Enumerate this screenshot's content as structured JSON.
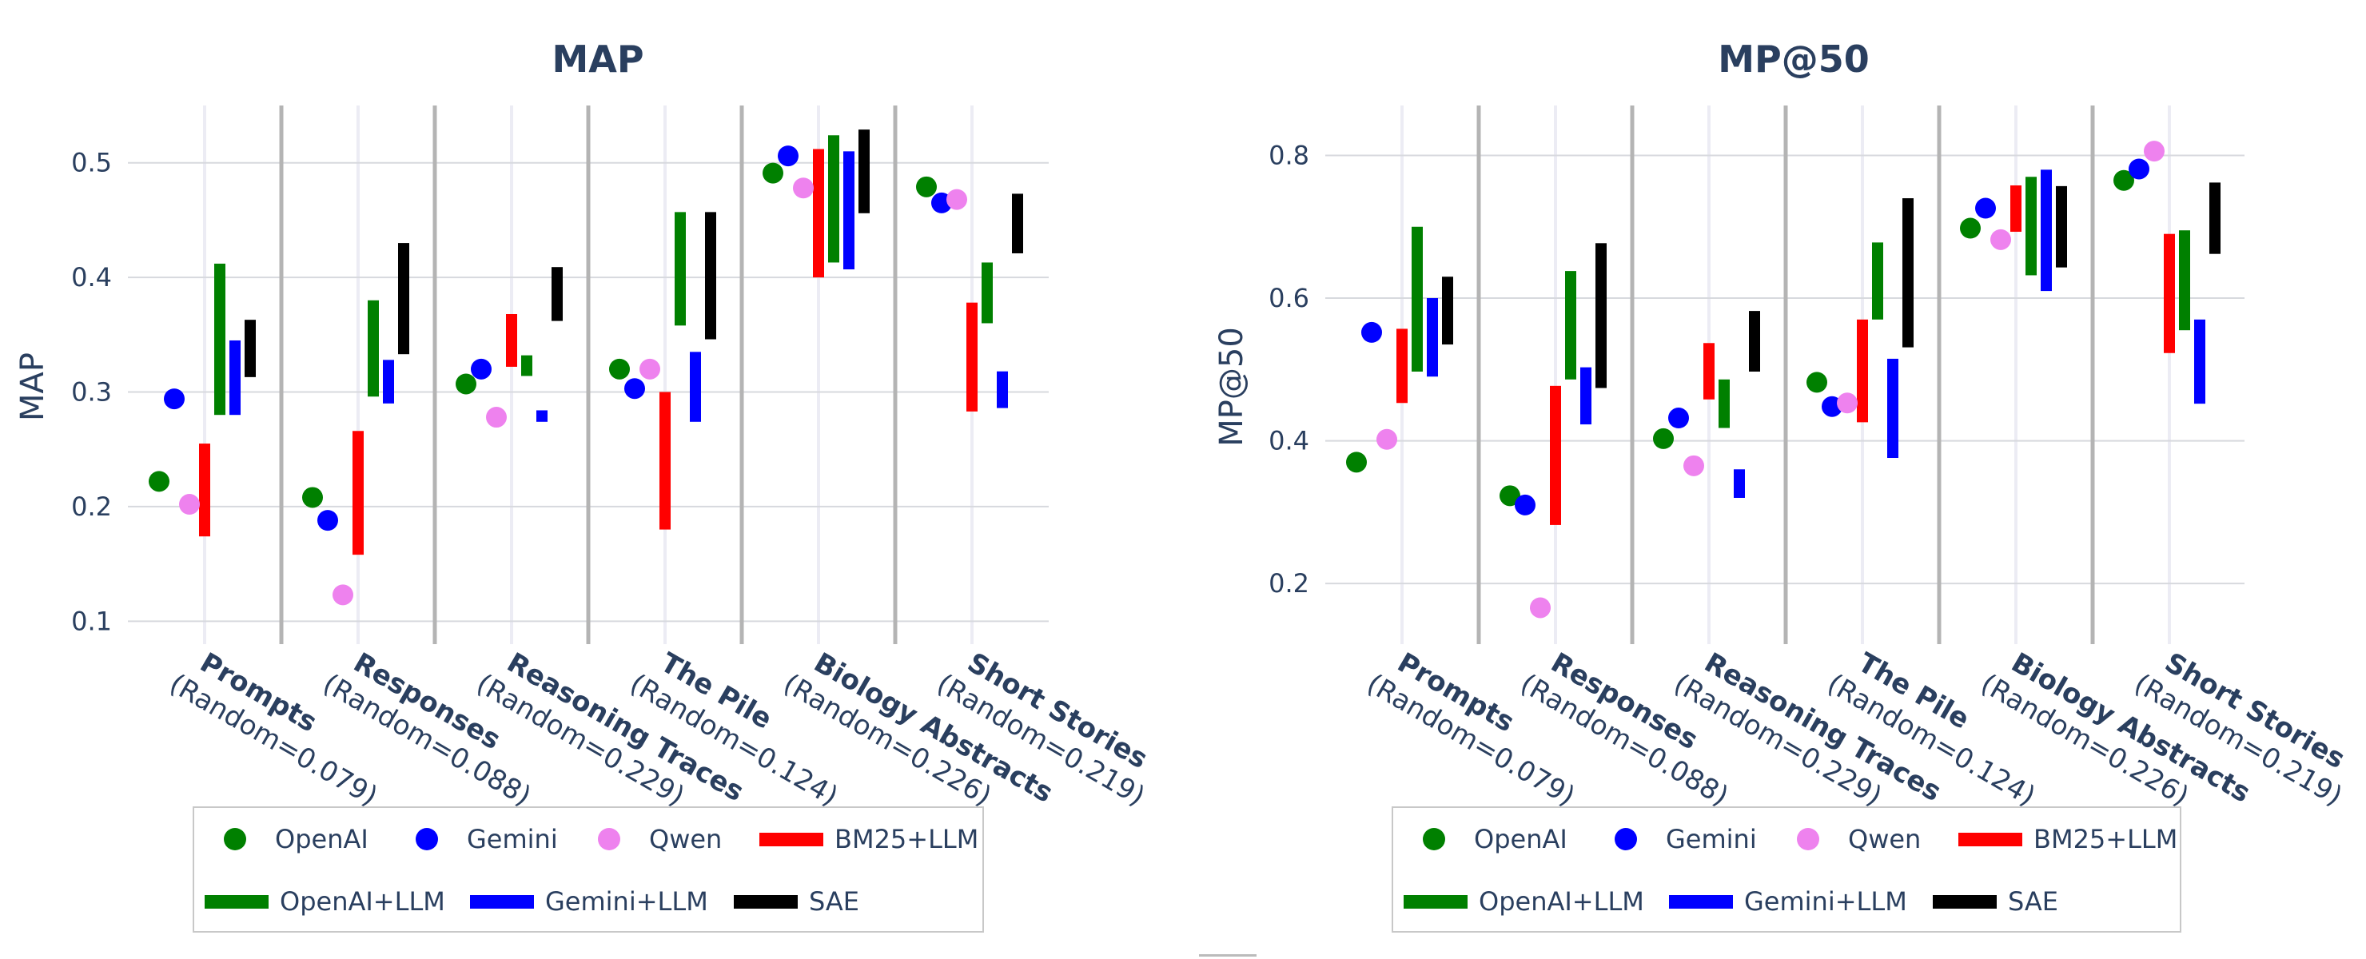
{
  "chart_data": [
    {
      "type": "range-dot",
      "title": "MAP",
      "ylabel": "MAP",
      "ylim": [
        0.08,
        0.55
      ],
      "yticks": [
        "0.1",
        "0.2",
        "0.3",
        "0.4",
        "0.5"
      ],
      "categories": [
        {
          "name": "Prompts",
          "random": "(Random=0.079)"
        },
        {
          "name": "Responses",
          "random": "(Random=0.088)"
        },
        {
          "name": "Reasoning Traces",
          "random": "(Random=0.229)"
        },
        {
          "name": "The Pile",
          "random": "(Random=0.124)"
        },
        {
          "name": "Biology Abstracts",
          "random": "(Random=0.226)"
        },
        {
          "name": "Short Stories",
          "random": "(Random=0.219)"
        }
      ],
      "dots": [
        {
          "name": "OpenAI",
          "color": "#008000",
          "values": [
            0.222,
            0.208,
            0.307,
            0.32,
            0.491,
            0.479
          ]
        },
        {
          "name": "Gemini",
          "color": "#0000ff",
          "values": [
            0.294,
            0.188,
            0.32,
            0.303,
            0.506,
            0.465
          ]
        },
        {
          "name": "Qwen",
          "color": "#ee82ee",
          "values": [
            0.202,
            0.123,
            0.278,
            0.32,
            0.478,
            0.468
          ]
        }
      ],
      "bars": [
        {
          "name": "BM25+LLM",
          "color": "#ff0000",
          "ranges": [
            [
              0.174,
              0.255
            ],
            [
              0.158,
              0.266
            ],
            [
              0.322,
              0.368
            ],
            [
              0.18,
              0.3
            ],
            [
              0.4,
              0.512
            ],
            [
              0.283,
              0.378
            ]
          ]
        },
        {
          "name": "OpenAI+LLM",
          "color": "#008000",
          "ranges": [
            [
              0.28,
              0.412
            ],
            [
              0.296,
              0.38
            ],
            [
              0.314,
              0.332
            ],
            [
              0.358,
              0.457
            ],
            [
              0.413,
              0.524
            ],
            [
              0.36,
              0.413
            ]
          ]
        },
        {
          "name": "Gemini+LLM",
          "color": "#0000ff",
          "ranges": [
            [
              0.28,
              0.345
            ],
            [
              0.29,
              0.328
            ],
            [
              0.274,
              0.284
            ],
            [
              0.274,
              0.335
            ],
            [
              0.407,
              0.51
            ],
            [
              0.286,
              0.318
            ]
          ]
        },
        {
          "name": "SAE",
          "color": "#000000",
          "ranges": [
            [
              0.313,
              0.363
            ],
            [
              0.333,
              0.43
            ],
            [
              0.362,
              0.409
            ],
            [
              0.346,
              0.457
            ],
            [
              0.456,
              0.529
            ],
            [
              0.421,
              0.473
            ]
          ]
        }
      ]
    },
    {
      "type": "range-dot",
      "title": "MP@50",
      "ylabel": "MP@50",
      "ylim": [
        0.115,
        0.87
      ],
      "yticks": [
        "0.2",
        "0.4",
        "0.6",
        "0.8"
      ],
      "categories": [
        {
          "name": "Prompts",
          "random": "(Random=0.079)"
        },
        {
          "name": "Responses",
          "random": "(Random=0.088)"
        },
        {
          "name": "Reasoning Traces",
          "random": "(Random=0.229)"
        },
        {
          "name": "The Pile",
          "random": "(Random=0.124)"
        },
        {
          "name": "Biology Abstracts",
          "random": "(Random=0.226)"
        },
        {
          "name": "Short Stories",
          "random": "(Random=0.219)"
        }
      ],
      "dots": [
        {
          "name": "OpenAI",
          "color": "#008000",
          "values": [
            0.37,
            0.323,
            0.403,
            0.482,
            0.698,
            0.765
          ]
        },
        {
          "name": "Gemini",
          "color": "#0000ff",
          "values": [
            0.552,
            0.31,
            0.432,
            0.448,
            0.726,
            0.781
          ]
        },
        {
          "name": "Qwen",
          "color": "#ee82ee",
          "values": [
            0.402,
            0.166,
            0.365,
            0.453,
            0.682,
            0.806
          ]
        }
      ],
      "bars": [
        {
          "name": "BM25+LLM",
          "color": "#ff0000",
          "ranges": [
            [
              0.453,
              0.557
            ],
            [
              0.282,
              0.477
            ],
            [
              0.458,
              0.537
            ],
            [
              0.426,
              0.57
            ],
            [
              0.693,
              0.758
            ],
            [
              0.523,
              0.69
            ]
          ]
        },
        {
          "name": "OpenAI+LLM",
          "color": "#008000",
          "ranges": [
            [
              0.497,
              0.7
            ],
            [
              0.486,
              0.638
            ],
            [
              0.418,
              0.486
            ],
            [
              0.57,
              0.678
            ],
            [
              0.632,
              0.77
            ],
            [
              0.555,
              0.695
            ]
          ]
        },
        {
          "name": "Gemini+LLM",
          "color": "#0000ff",
          "ranges": [
            [
              0.49,
              0.6
            ],
            [
              0.423,
              0.503
            ],
            [
              0.32,
              0.36
            ],
            [
              0.376,
              0.515
            ],
            [
              0.61,
              0.78
            ],
            [
              0.452,
              0.57
            ]
          ]
        },
        {
          "name": "SAE",
          "color": "#000000",
          "ranges": [
            [
              0.535,
              0.63
            ],
            [
              0.474,
              0.677
            ],
            [
              0.497,
              0.582
            ],
            [
              0.531,
              0.74
            ],
            [
              0.643,
              0.757
            ],
            [
              0.662,
              0.762
            ]
          ]
        }
      ]
    }
  ],
  "legend": [
    {
      "name": "OpenAI",
      "kind": "dot",
      "color": "#008000"
    },
    {
      "name": "Gemini",
      "kind": "dot",
      "color": "#0000ff"
    },
    {
      "name": "Qwen",
      "kind": "dot",
      "color": "#ee82ee"
    },
    {
      "name": "BM25+LLM",
      "kind": "bar",
      "color": "#ff0000"
    },
    {
      "name": "OpenAI+LLM",
      "kind": "bar",
      "color": "#008000"
    },
    {
      "name": "Gemini+LLM",
      "kind": "bar",
      "color": "#0000ff"
    },
    {
      "name": "SAE",
      "kind": "bar",
      "color": "#000000"
    }
  ]
}
